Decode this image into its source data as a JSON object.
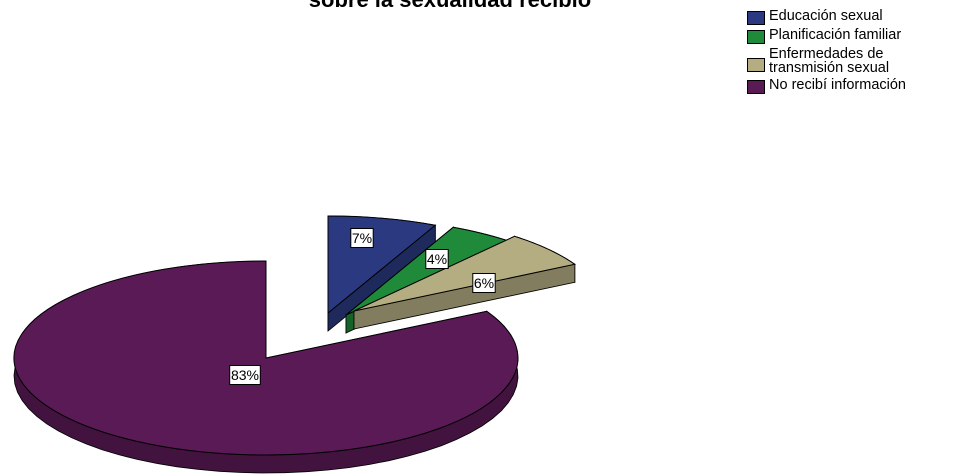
{
  "chart_data": {
    "type": "pie",
    "title": "sobre la sexualidad recibió",
    "categories": [
      "Educación sexual",
      "Planificación familiar",
      "Enfermedades de\ntransmisión sexual",
      "No recibí información"
    ],
    "values": [
      7,
      4,
      6,
      83
    ],
    "data_labels": [
      "7%",
      "4%",
      "6%",
      "83%"
    ],
    "colors": [
      "#2b3a80",
      "#1e8a3a",
      "#b5ad82",
      "#5a1a56"
    ],
    "legend_position": "top-right",
    "exploded_slices": [
      0,
      1,
      2
    ],
    "style": "3d"
  }
}
